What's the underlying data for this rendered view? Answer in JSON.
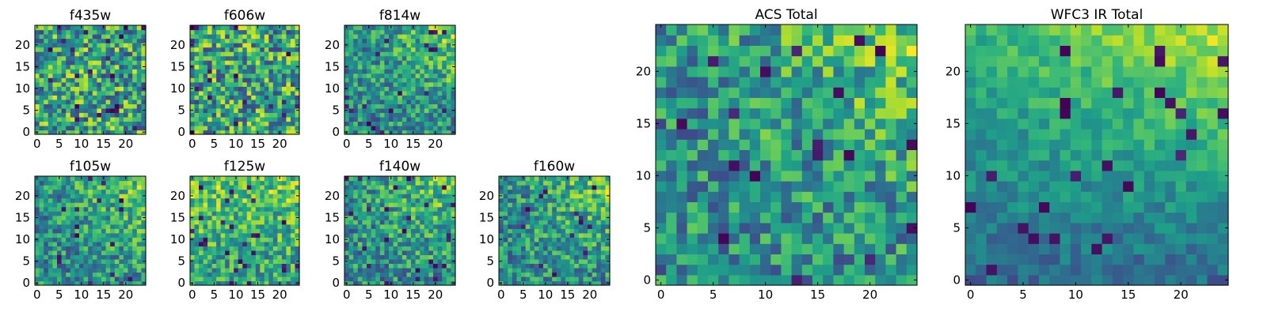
{
  "figure": {
    "colormap": "viridis",
    "background": "#ffffff",
    "frame_color": "#000000"
  },
  "chart_data": [
    {
      "type": "heatmap",
      "title": "f435w",
      "grid": [
        25,
        25
      ],
      "xticks": [
        0,
        5,
        10,
        15,
        20
      ],
      "yticks": [
        0,
        5,
        10,
        15,
        20
      ],
      "xlim": [
        0,
        25
      ],
      "ylim": [
        0,
        25
      ],
      "pattern": "uniform-noise",
      "value_range": [
        0,
        1
      ]
    },
    {
      "type": "heatmap",
      "title": "f606w",
      "grid": [
        25,
        25
      ],
      "xticks": [
        0,
        5,
        10,
        15,
        20
      ],
      "yticks": [
        0,
        5,
        10,
        15,
        20
      ],
      "xlim": [
        0,
        25
      ],
      "ylim": [
        0,
        25
      ],
      "pattern": "uniform-noise",
      "value_range": [
        0,
        1
      ]
    },
    {
      "type": "heatmap",
      "title": "f814w",
      "grid": [
        25,
        25
      ],
      "xticks": [
        0,
        5,
        10,
        15,
        20
      ],
      "yticks": [
        0,
        5,
        10,
        15,
        20
      ],
      "xlim": [
        0,
        25
      ],
      "ylim": [
        0,
        25
      ],
      "pattern": "bright-top-right",
      "value_range": [
        0,
        1
      ]
    },
    {
      "type": "heatmap",
      "title": "f105w",
      "grid": [
        25,
        25
      ],
      "xticks": [
        0,
        5,
        10,
        15,
        20
      ],
      "yticks": [
        0,
        5,
        10,
        15,
        20
      ],
      "xlim": [
        0,
        25
      ],
      "ylim": [
        0,
        25
      ],
      "pattern": "bright-top-right",
      "value_range": [
        0,
        1
      ]
    },
    {
      "type": "heatmap",
      "title": "f125w",
      "grid": [
        25,
        25
      ],
      "xticks": [
        0,
        5,
        10,
        15,
        20
      ],
      "yticks": [
        0,
        5,
        10,
        15,
        20
      ],
      "xlim": [
        0,
        25
      ],
      "ylim": [
        0,
        25
      ],
      "pattern": "bright-top",
      "value_range": [
        0,
        1
      ]
    },
    {
      "type": "heatmap",
      "title": "f140w",
      "grid": [
        25,
        25
      ],
      "xticks": [
        0,
        5,
        10,
        15,
        20
      ],
      "yticks": [
        0,
        5,
        10,
        15,
        20
      ],
      "xlim": [
        0,
        25
      ],
      "ylim": [
        0,
        25
      ],
      "pattern": "bright-top-right",
      "value_range": [
        0,
        1
      ]
    },
    {
      "type": "heatmap",
      "title": "f160w",
      "grid": [
        25,
        25
      ],
      "xticks": [
        0,
        5,
        10,
        15,
        20
      ],
      "yticks": [
        0,
        5,
        10,
        15,
        20
      ],
      "xlim": [
        0,
        25
      ],
      "ylim": [
        0,
        25
      ],
      "pattern": "bright-top-right",
      "value_range": [
        0,
        1
      ]
    },
    {
      "type": "heatmap",
      "title": "ACS Total",
      "grid": [
        25,
        25
      ],
      "xticks": [
        0,
        5,
        10,
        15,
        20
      ],
      "yticks": [
        0,
        5,
        10,
        15,
        20
      ],
      "xlim": [
        0,
        25
      ],
      "ylim": [
        0,
        25
      ],
      "pattern": "bright-top-right",
      "value_range": [
        0,
        1
      ]
    },
    {
      "type": "heatmap",
      "title": "WFC3 IR Total",
      "grid": [
        25,
        25
      ],
      "xticks": [
        0,
        5,
        10,
        15,
        20
      ],
      "yticks": [
        0,
        5,
        10,
        15,
        20
      ],
      "xlim": [
        0,
        25
      ],
      "ylim": [
        0,
        25
      ],
      "pattern": "gradient-top-right",
      "value_range": [
        0,
        1
      ]
    }
  ]
}
